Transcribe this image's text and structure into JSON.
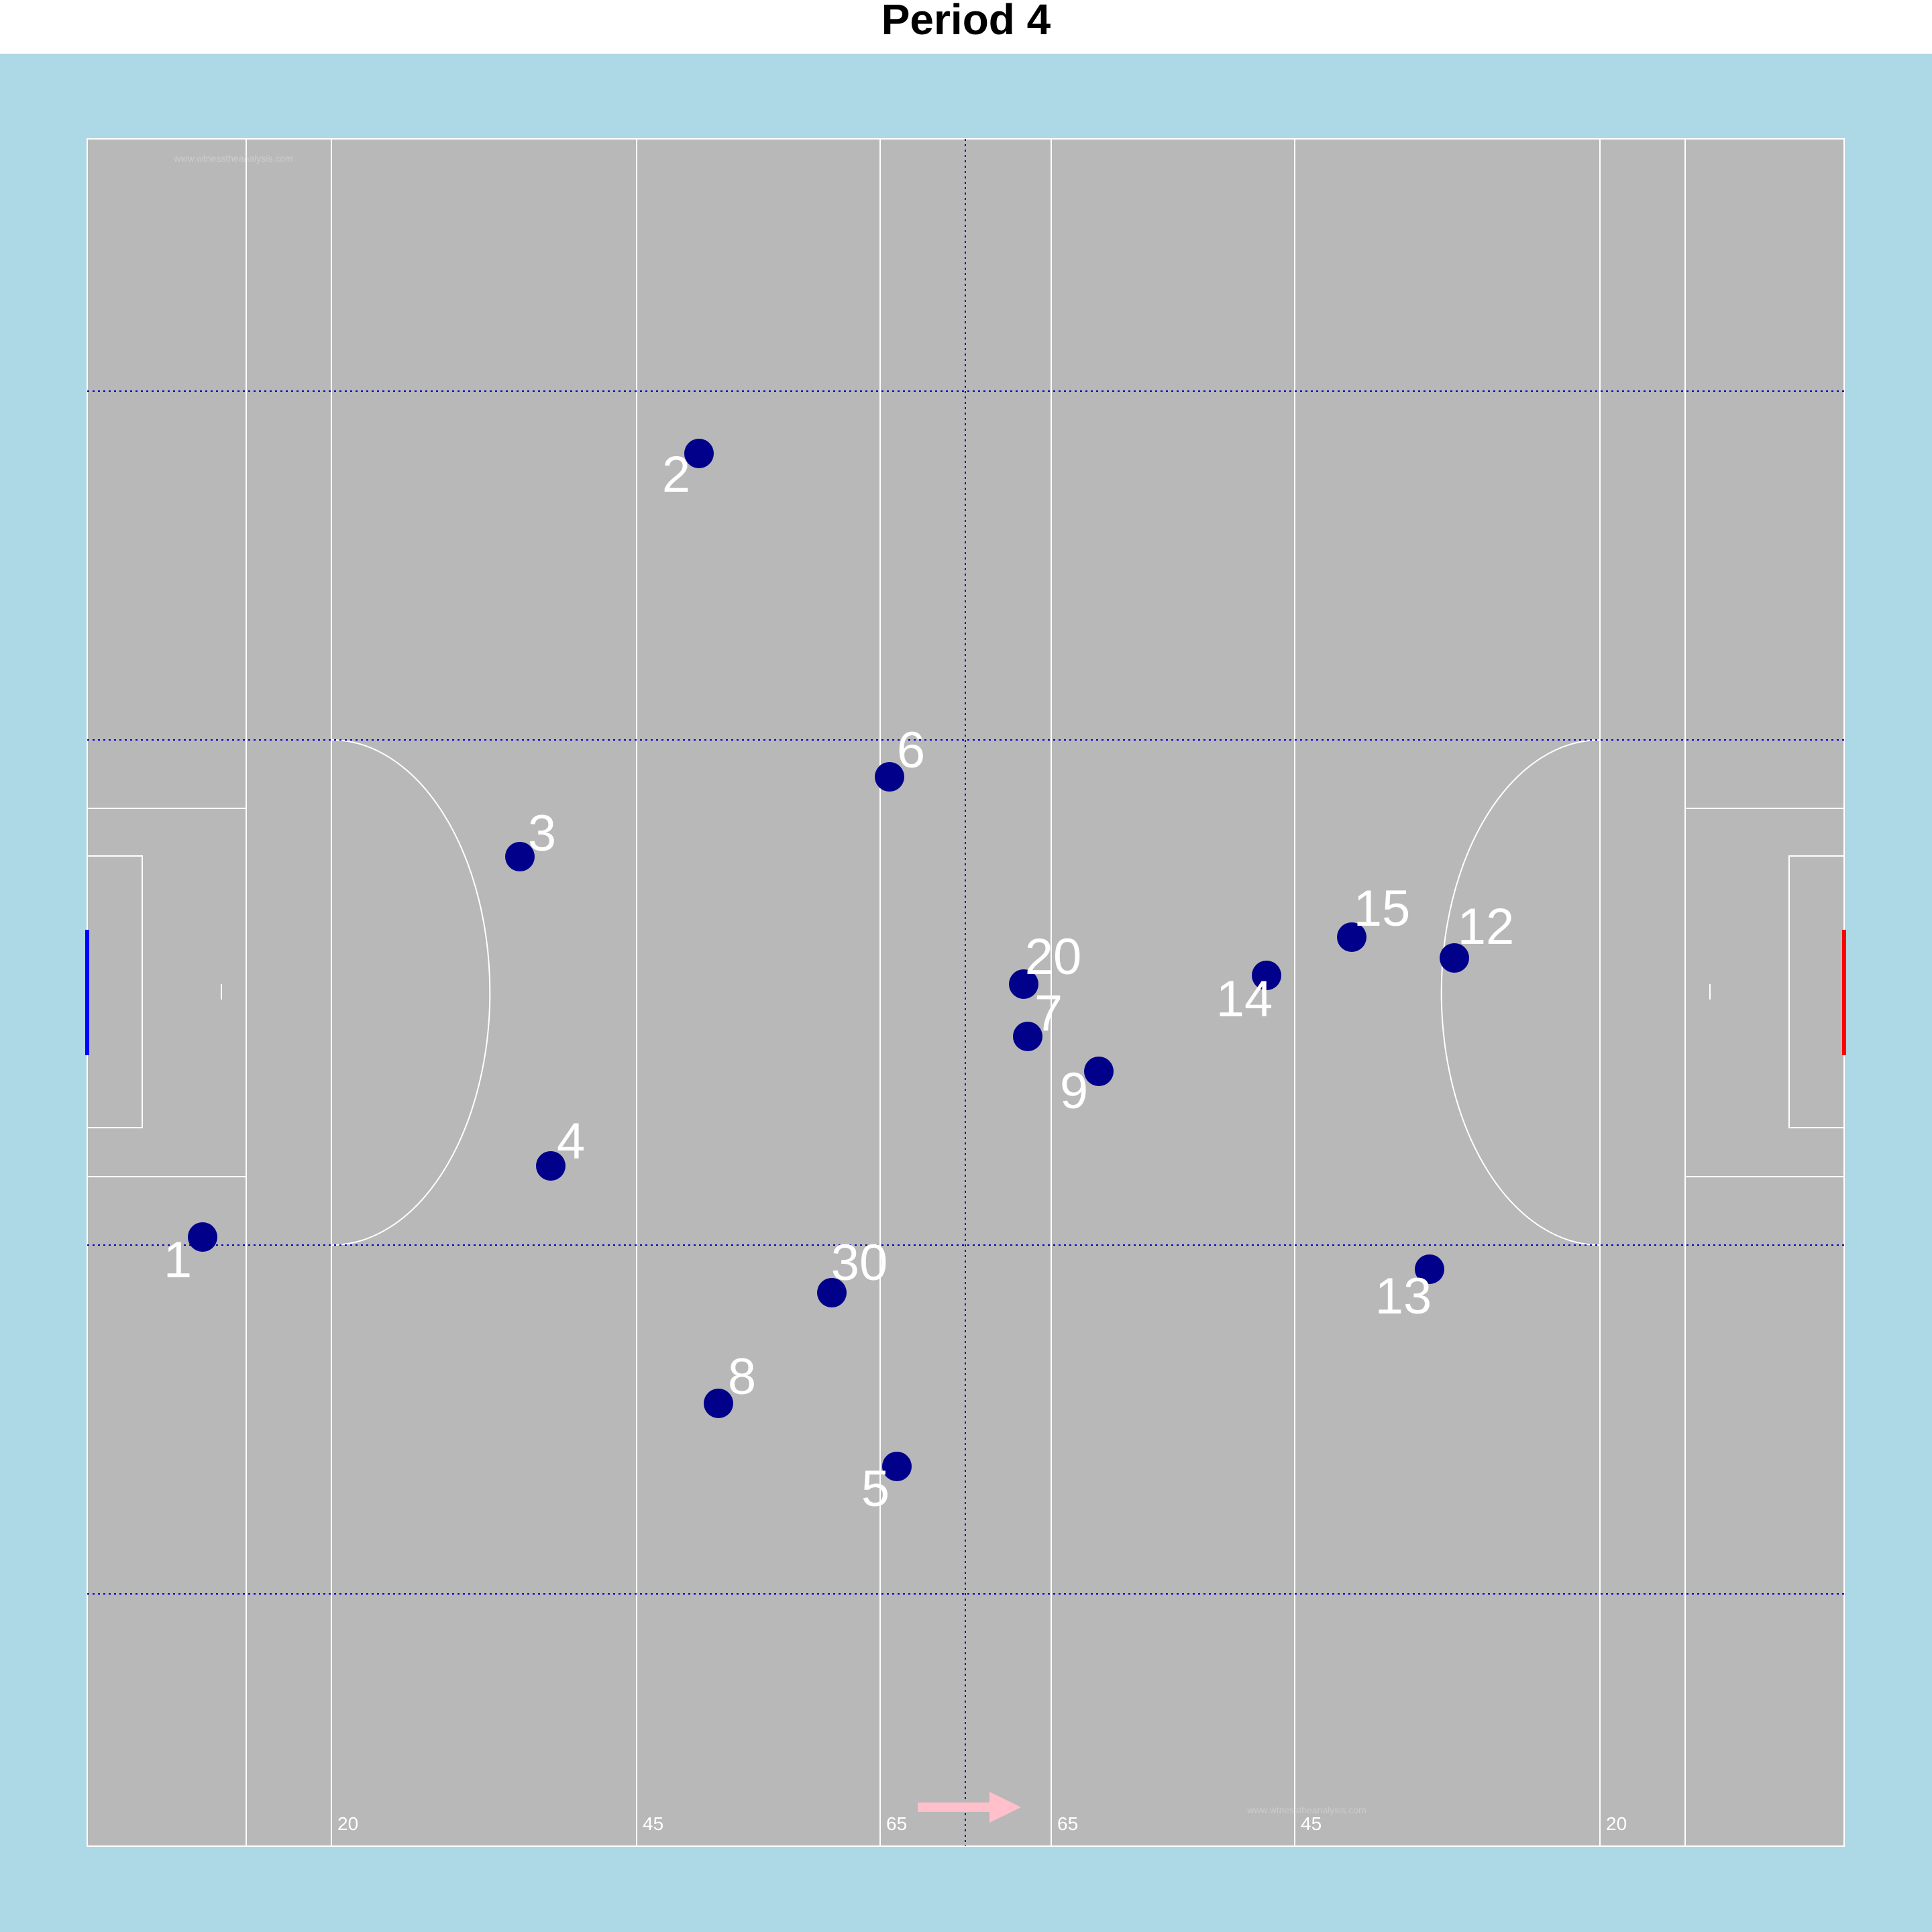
{
  "title": "Period 4",
  "colors": {
    "background": "#add8e6",
    "pitch": "#b8b8b8",
    "lines": "#ffffff",
    "grid": "#0000cd",
    "player": "#00008b",
    "label": "#ffffff",
    "goal_left": "#0000ff",
    "goal_right": "#ff0000",
    "direction_arrow": "#ffc0cb"
  },
  "watermark": "www.wtnesstheanalysis.com",
  "line_labels": [
    "20",
    "45",
    "65",
    "65",
    "45",
    "20"
  ],
  "direction_arrow_icon": "arrow-right-icon",
  "players": [
    {
      "number": "1"
    },
    {
      "number": "2"
    },
    {
      "number": "3"
    },
    {
      "number": "4"
    },
    {
      "number": "5"
    },
    {
      "number": "6"
    },
    {
      "number": "7"
    },
    {
      "number": "8"
    },
    {
      "number": "9"
    },
    {
      "number": "12"
    },
    {
      "number": "13"
    },
    {
      "number": "14"
    },
    {
      "number": "15"
    },
    {
      "number": "20"
    },
    {
      "number": "30"
    }
  ]
}
